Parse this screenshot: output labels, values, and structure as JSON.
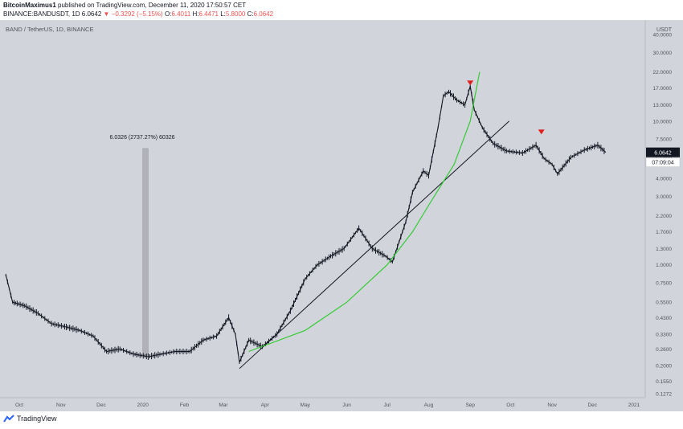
{
  "header": {
    "author": "BitcoinMaximus1",
    "published_text": "published on TradingView.com, December 11, 2020 17:50:57 CET",
    "symbol_line": "BINANCE:BANDUSDT, 1D 6.0642",
    "change_arrow": "▼",
    "change_text": "−0.3292 (−5.15%)",
    "ohlc": [
      {
        "label": "O:",
        "value": "6.4011"
      },
      {
        "label": "H:",
        "value": "6.4471"
      },
      {
        "label": "L:",
        "value": "5.8000"
      },
      {
        "label": "C:",
        "value": "6.0642"
      }
    ]
  },
  "chart_data": {
    "type": "line",
    "title": "BAND / TetherUS, 1D, BINANCE",
    "yaxis_unit": "USDT",
    "yscale": "log",
    "ylim": [
      0.1272,
      40
    ],
    "ticks": [
      "40.0000",
      "30.0000",
      "22.0000",
      "17.0000",
      "13.0000",
      "10.0000",
      "7.5000",
      "5.5000",
      "4.0000",
      "3.0000",
      "2.2000",
      "1.7000",
      "1.3000",
      "1.0000",
      "0.7500",
      "0.5500",
      "0.4300",
      "0.3300",
      "0.2600",
      "0.2000",
      "0.1550",
      "0.1272"
    ],
    "xticks": [
      "Oct",
      "Nov",
      "Dec",
      "2020",
      "Feb",
      "Mar",
      "Apr",
      "May",
      "Jun",
      "Jul",
      "Aug",
      "Sep",
      "Oct",
      "Nov",
      "Dec",
      "2021"
    ],
    "series": [
      {
        "values": [
          {
            "x": "2019-09-21",
            "y": 0.85
          },
          {
            "x": "2019-09-26",
            "y": 0.55
          },
          {
            "x": "2019-10-05",
            "y": 0.52
          },
          {
            "x": "2019-10-15",
            "y": 0.46
          },
          {
            "x": "2019-10-25",
            "y": 0.39
          },
          {
            "x": "2019-11-05",
            "y": 0.37
          },
          {
            "x": "2019-11-15",
            "y": 0.35
          },
          {
            "x": "2019-11-25",
            "y": 0.32
          },
          {
            "x": "2019-12-05",
            "y": 0.25
          },
          {
            "x": "2019-12-15",
            "y": 0.26
          },
          {
            "x": "2019-12-25",
            "y": 0.24
          },
          {
            "x": "2020-01-05",
            "y": 0.23
          },
          {
            "x": "2020-01-15",
            "y": 0.24
          },
          {
            "x": "2020-01-25",
            "y": 0.25
          },
          {
            "x": "2020-02-05",
            "y": 0.25
          },
          {
            "x": "2020-02-15",
            "y": 0.3
          },
          {
            "x": "2020-02-25",
            "y": 0.32
          },
          {
            "x": "2020-03-05",
            "y": 0.43
          },
          {
            "x": "2020-03-10",
            "y": 0.33
          },
          {
            "x": "2020-03-13",
            "y": 0.21
          },
          {
            "x": "2020-03-20",
            "y": 0.3
          },
          {
            "x": "2020-03-30",
            "y": 0.27
          },
          {
            "x": "2020-04-10",
            "y": 0.33
          },
          {
            "x": "2020-04-20",
            "y": 0.48
          },
          {
            "x": "2020-05-01",
            "y": 0.8
          },
          {
            "x": "2020-05-10",
            "y": 1.0
          },
          {
            "x": "2020-05-20",
            "y": 1.15
          },
          {
            "x": "2020-05-30",
            "y": 1.3
          },
          {
            "x": "2020-06-10",
            "y": 1.8
          },
          {
            "x": "2020-06-20",
            "y": 1.3
          },
          {
            "x": "2020-06-30",
            "y": 1.15
          },
          {
            "x": "2020-07-05",
            "y": 1.05
          },
          {
            "x": "2020-07-15",
            "y": 2.0
          },
          {
            "x": "2020-07-20",
            "y": 3.2
          },
          {
            "x": "2020-07-28",
            "y": 4.5
          },
          {
            "x": "2020-08-01",
            "y": 4.2
          },
          {
            "x": "2020-08-08",
            "y": 9.0
          },
          {
            "x": "2020-08-12",
            "y": 15.0
          },
          {
            "x": "2020-08-16",
            "y": 16.0
          },
          {
            "x": "2020-08-22",
            "y": 14.0
          },
          {
            "x": "2020-08-28",
            "y": 13.0
          },
          {
            "x": "2020-09-01",
            "y": 17.5
          },
          {
            "x": "2020-09-04",
            "y": 12.0
          },
          {
            "x": "2020-09-10",
            "y": 9.0
          },
          {
            "x": "2020-09-18",
            "y": 7.0
          },
          {
            "x": "2020-09-28",
            "y": 6.2
          },
          {
            "x": "2020-10-10",
            "y": 6.0
          },
          {
            "x": "2020-10-20",
            "y": 6.8
          },
          {
            "x": "2020-10-26",
            "y": 5.5
          },
          {
            "x": "2020-11-01",
            "y": 5.0
          },
          {
            "x": "2020-11-05",
            "y": 4.3
          },
          {
            "x": "2020-11-15",
            "y": 5.6
          },
          {
            "x": "2020-11-25",
            "y": 6.3
          },
          {
            "x": "2020-12-05",
            "y": 6.8
          },
          {
            "x": "2020-12-11",
            "y": 6.06
          }
        ]
      }
    ],
    "trendline_points": [
      {
        "x": "2020-03-13",
        "y": 0.19
      },
      {
        "x": "2020-09-30",
        "y": 10.0
      }
    ],
    "curve_points": [
      {
        "x": "2020-03-20",
        "y": 0.25
      },
      {
        "x": "2020-05-01",
        "y": 0.35
      },
      {
        "x": "2020-06-01",
        "y": 0.55
      },
      {
        "x": "2020-07-01",
        "y": 1.0
      },
      {
        "x": "2020-07-20",
        "y": 1.7
      },
      {
        "x": "2020-08-01",
        "y": 2.6
      },
      {
        "x": "2020-08-20",
        "y": 5.0
      },
      {
        "x": "2020-09-01",
        "y": 10.0
      },
      {
        "x": "2020-09-08",
        "y": 22.0
      }
    ],
    "arrows": [
      {
        "x": "2020-09-01",
        "y": 18.2
      },
      {
        "x": "2020-10-24",
        "y": 8.3
      }
    ],
    "measure": {
      "label": "6.0326 (2737.27%) 60326",
      "x1": "2020-01-01",
      "x2": "2020-01-05",
      "y_low": 0.235,
      "y_high": 6.45
    },
    "last_price": "6.0642",
    "countdown": "07:09:04",
    "colors": {
      "background": "#d2d4dc",
      "candles": "#131722",
      "trendline": "#131722",
      "curve": "#33cc33",
      "arrow": "#e01e1e",
      "last_price_tag": "#131722",
      "measure": "#b0b2b8"
    }
  },
  "footer": {
    "brand": "TradingView"
  }
}
